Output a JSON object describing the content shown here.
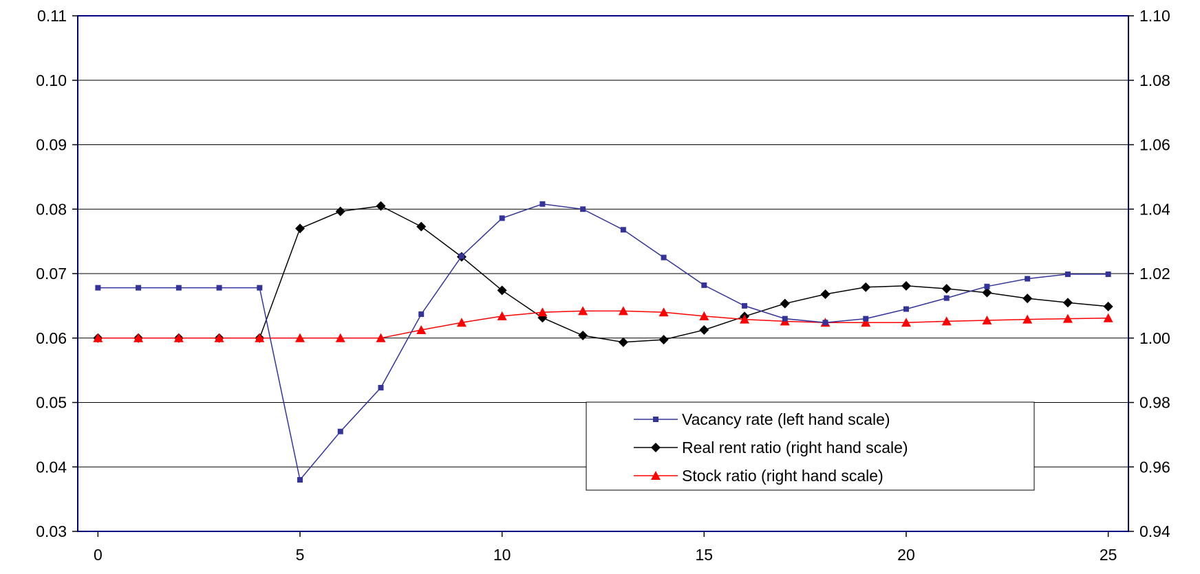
{
  "chart_data": {
    "type": "line",
    "x": [
      0,
      1,
      2,
      3,
      4,
      5,
      6,
      7,
      8,
      9,
      10,
      11,
      12,
      13,
      14,
      15,
      16,
      17,
      18,
      19,
      20,
      21,
      22,
      23,
      24,
      25
    ],
    "xlim": [
      -0.5,
      25.5
    ],
    "x_ticks": [
      0,
      5,
      10,
      15,
      20,
      25
    ],
    "x_tick_labels": [
      "0",
      "5",
      "10",
      "15",
      "20",
      "25"
    ],
    "y_left": {
      "lim": [
        0.03,
        0.11
      ],
      "ticks": [
        0.03,
        0.04,
        0.05,
        0.06,
        0.07,
        0.08,
        0.09,
        0.1,
        0.11
      ],
      "tick_labels": [
        "0.03",
        "0.04",
        "0.05",
        "0.06",
        "0.07",
        "0.08",
        "0.09",
        "0.10",
        "0.11"
      ]
    },
    "y_right": {
      "lim": [
        0.94,
        1.1
      ],
      "ticks": [
        0.94,
        0.96,
        0.98,
        1.0,
        1.02,
        1.04,
        1.06,
        1.08,
        1.1
      ],
      "tick_labels": [
        "0.94",
        "0.96",
        "0.98",
        "1.00",
        "1.02",
        "1.04",
        "1.06",
        "1.08",
        "1.10"
      ]
    },
    "grid": "horizontal",
    "legend_position": "bottom-right",
    "series": [
      {
        "name": "Vacancy rate (left hand scale)",
        "axis": "left",
        "color": "#333399",
        "marker": "square",
        "values": [
          0.0678,
          0.0678,
          0.0678,
          0.0678,
          0.0678,
          0.038,
          0.0455,
          0.0523,
          0.0637,
          0.0727,
          0.0786,
          0.0808,
          0.08,
          0.0768,
          0.0725,
          0.0682,
          0.065,
          0.063,
          0.0624,
          0.063,
          0.0645,
          0.0662,
          0.068,
          0.0692,
          0.0699,
          0.0699
        ]
      },
      {
        "name": "Real rent ratio (right hand scale)",
        "axis": "right",
        "color": "#000000",
        "marker": "diamond",
        "values": [
          1.0,
          1.0,
          1.0,
          1.0,
          1.0,
          1.034,
          1.0393,
          1.041,
          1.0346,
          1.0252,
          1.0148,
          1.0063,
          1.0008,
          0.9987,
          0.9995,
          1.0025,
          1.0067,
          1.0107,
          1.0136,
          1.0158,
          1.0162,
          1.0153,
          1.0141,
          1.0123,
          1.011,
          1.0098
        ]
      },
      {
        "name": "Stock ratio (right hand scale)",
        "axis": "right",
        "color": "#ff0000",
        "marker": "triangle",
        "values": [
          1.0,
          1.0,
          1.0,
          1.0,
          1.0,
          1.0,
          1.0,
          1.0,
          1.0025,
          1.0048,
          1.0068,
          1.008,
          1.0084,
          1.0084,
          1.008,
          1.0068,
          1.0058,
          1.0052,
          1.0048,
          1.0048,
          1.0048,
          1.0052,
          1.0055,
          1.0058,
          1.006,
          1.0062
        ]
      }
    ]
  }
}
